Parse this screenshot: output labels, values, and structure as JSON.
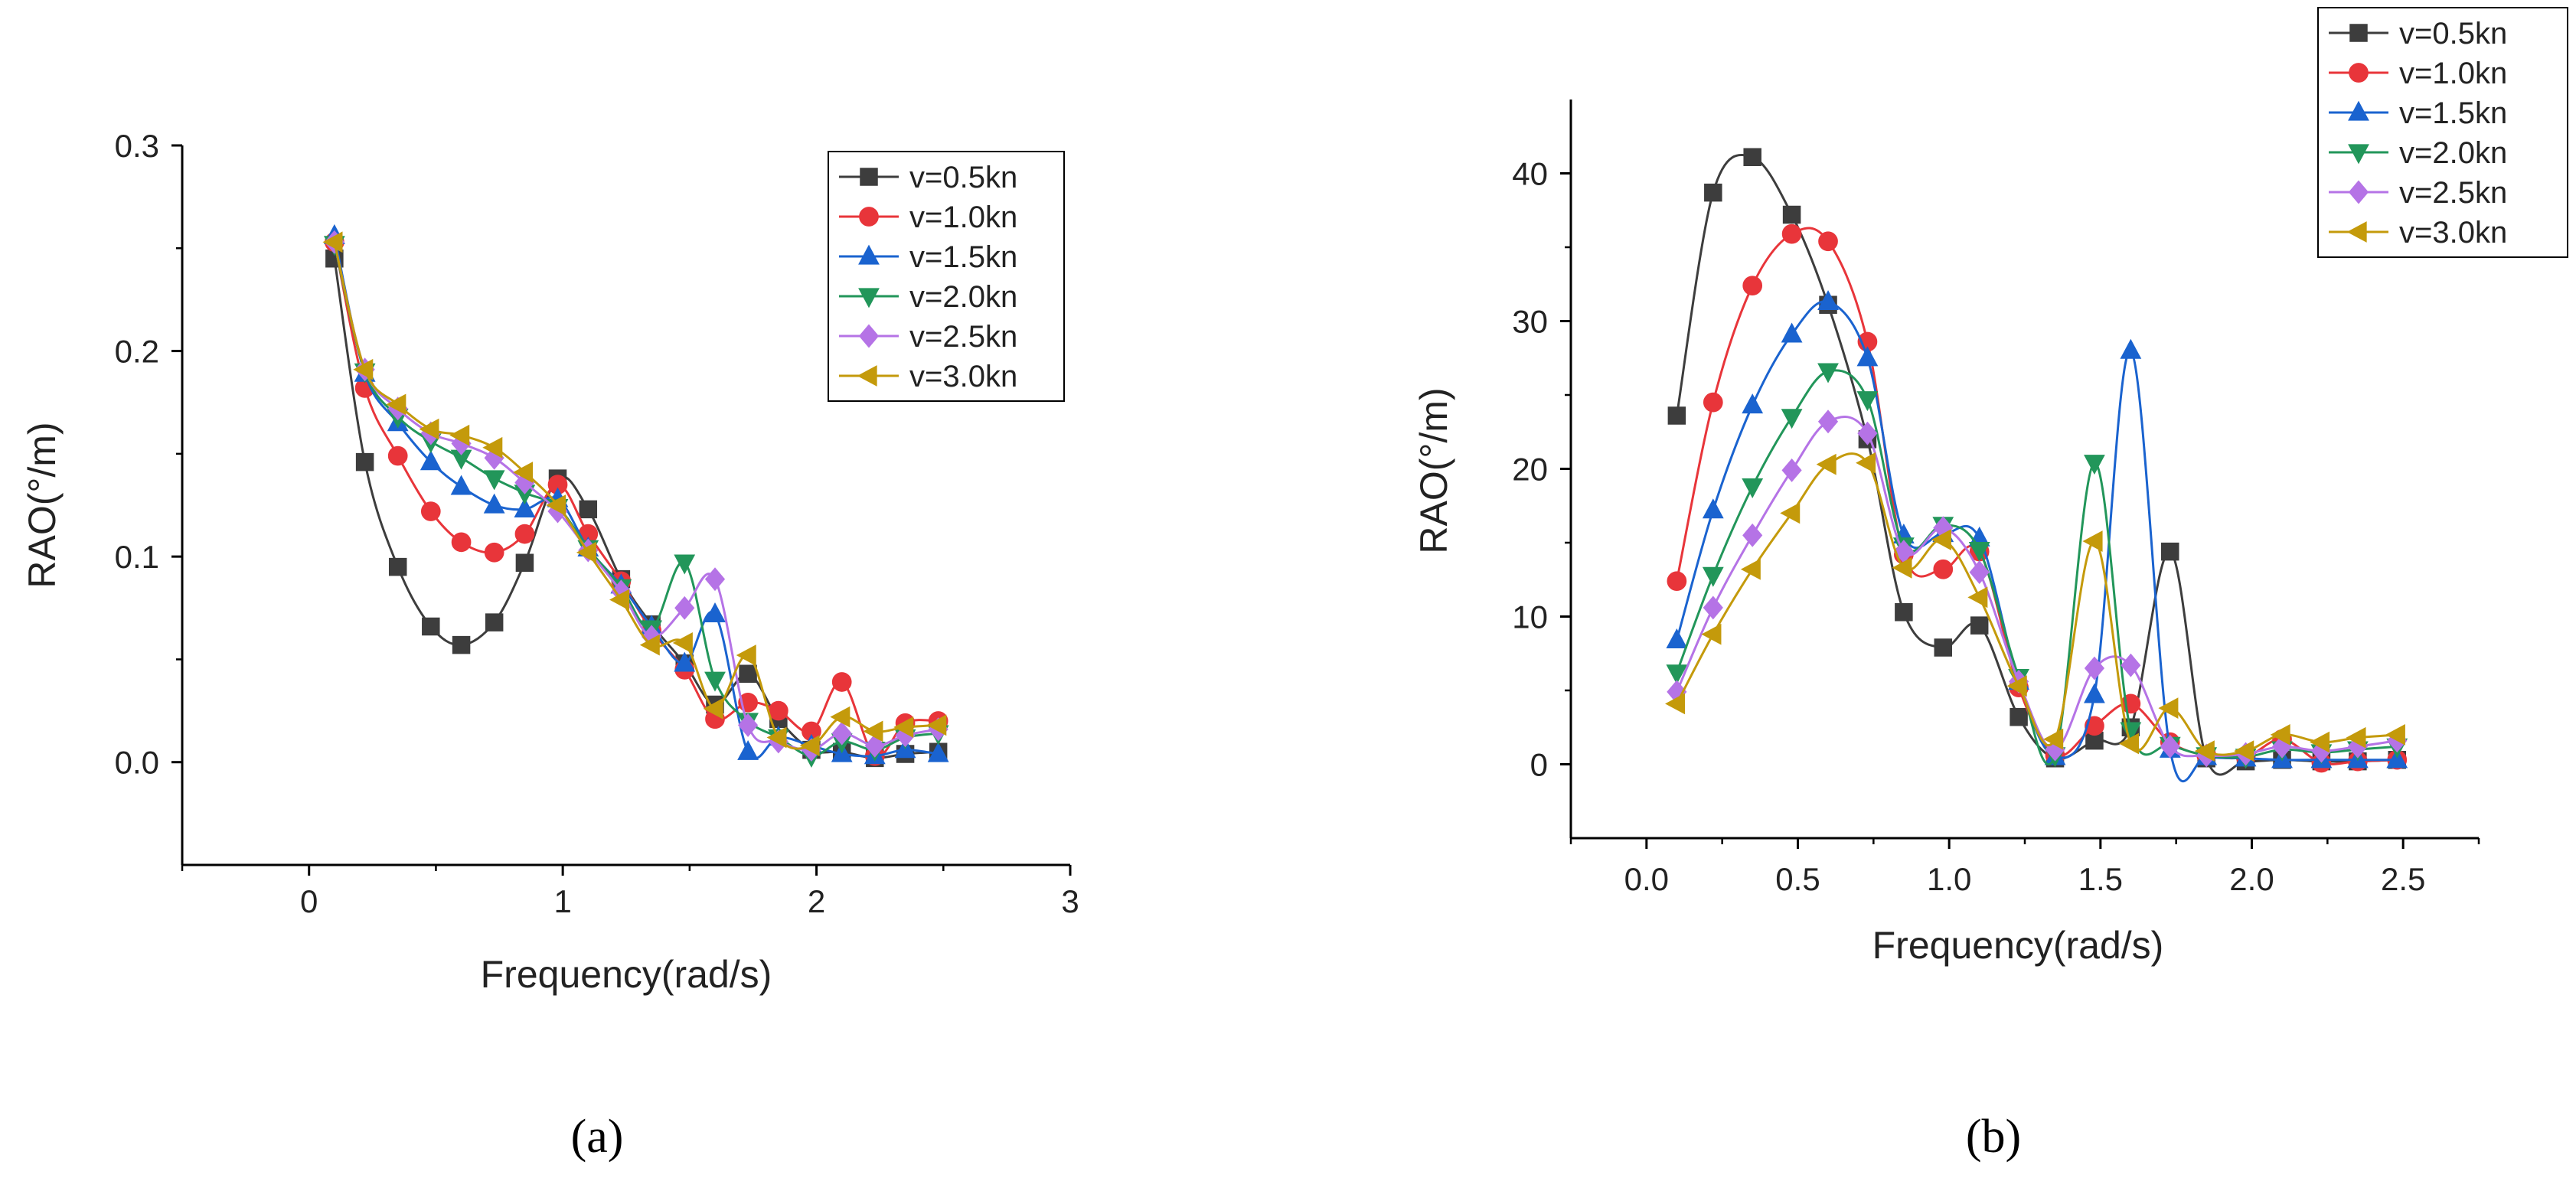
{
  "chart_data": [
    {
      "panel": "a",
      "caption": "(a)",
      "type": "line",
      "xlabel": "Frequency(rad/s)",
      "ylabel": "RAO(°/m)",
      "xlim": [
        -0.5,
        3
      ],
      "ylim": [
        -0.05,
        0.3
      ],
      "xticks": [
        0,
        1,
        2,
        3
      ],
      "xtick_labels": [
        "0",
        "1",
        "2",
        "3"
      ],
      "yticks": [
        0.0,
        0.1,
        0.2,
        0.3
      ],
      "ytick_labels": [
        "0.0",
        "0.1",
        "0.2",
        "0.3"
      ],
      "legend_position": "top-right",
      "x": [
        0.1,
        0.22,
        0.35,
        0.48,
        0.6,
        0.73,
        0.85,
        0.98,
        1.1,
        1.23,
        1.35,
        1.48,
        1.6,
        1.73,
        1.85,
        1.98,
        2.1,
        2.23,
        2.35,
        2.48
      ],
      "series": [
        {
          "name": "v=0.5kn",
          "color": "#3d3d3d",
          "marker": "square",
          "values": [
            0.245,
            0.146,
            0.095,
            0.066,
            0.057,
            0.068,
            0.097,
            0.138,
            0.123,
            0.089,
            0.067,
            0.048,
            0.028,
            0.043,
            0.021,
            0.006,
            0.005,
            0.002,
            0.004,
            0.005
          ]
        },
        {
          "name": "v=1.0kn",
          "color": "#e8353a",
          "marker": "circle",
          "values": [
            0.253,
            0.182,
            0.149,
            0.122,
            0.107,
            0.102,
            0.111,
            0.135,
            0.111,
            0.088,
            0.064,
            0.045,
            0.021,
            0.029,
            0.025,
            0.015,
            0.039,
            0.003,
            0.019,
            0.02
          ]
        },
        {
          "name": "v=1.5kn",
          "color": "#1a63cf",
          "marker": "triangle-up",
          "values": [
            0.256,
            0.189,
            0.165,
            0.146,
            0.134,
            0.125,
            0.123,
            0.128,
            0.104,
            0.086,
            0.066,
            0.048,
            0.072,
            0.005,
            0.012,
            0.008,
            0.004,
            0.003,
            0.006,
            0.004
          ]
        },
        {
          "name": "v=2.0kn",
          "color": "#22965a",
          "marker": "triangle-down",
          "values": [
            0.252,
            0.19,
            0.168,
            0.156,
            0.148,
            0.138,
            0.131,
            0.124,
            0.104,
            0.085,
            0.065,
            0.097,
            0.04,
            0.02,
            0.012,
            0.003,
            0.01,
            0.006,
            0.012,
            0.014
          ]
        },
        {
          "name": "v=2.5kn",
          "color": "#b573e6",
          "marker": "diamond",
          "values": [
            0.253,
            0.191,
            0.172,
            0.16,
            0.155,
            0.148,
            0.136,
            0.122,
            0.103,
            0.083,
            0.061,
            0.075,
            0.089,
            0.018,
            0.01,
            0.006,
            0.014,
            0.008,
            0.013,
            0.016
          ]
        },
        {
          "name": "v=3.0kn",
          "color": "#c49a0b",
          "marker": "triangle-left",
          "values": [
            0.253,
            0.191,
            0.174,
            0.162,
            0.159,
            0.153,
            0.141,
            0.125,
            0.102,
            0.079,
            0.057,
            0.058,
            0.026,
            0.052,
            0.012,
            0.008,
            0.022,
            0.015,
            0.017,
            0.018
          ]
        }
      ]
    },
    {
      "panel": "b",
      "caption": "(b)",
      "type": "line",
      "xlabel": "Frequency(rad/s)",
      "ylabel": "RAO(°/m)",
      "xlim": [
        -0.25,
        2.75
      ],
      "ylim": [
        -5,
        45
      ],
      "xticks": [
        0.0,
        0.5,
        1.0,
        1.5,
        2.0,
        2.5
      ],
      "xtick_labels": [
        "0.0",
        "0.5",
        "1.0",
        "1.5",
        "2.0",
        "2.5"
      ],
      "yticks": [
        0,
        10,
        20,
        30,
        40
      ],
      "ytick_labels": [
        "0",
        "10",
        "20",
        "30",
        "40"
      ],
      "legend_position": "top-right",
      "x": [
        0.1,
        0.22,
        0.35,
        0.48,
        0.6,
        0.73,
        0.85,
        0.98,
        1.1,
        1.23,
        1.35,
        1.48,
        1.6,
        1.73,
        1.85,
        1.98,
        2.1,
        2.23,
        2.35,
        2.48
      ],
      "series": [
        {
          "name": "v=0.5kn",
          "color": "#3d3d3d",
          "marker": "square",
          "values": [
            23.6,
            38.7,
            41.1,
            37.2,
            31.1,
            22.0,
            10.3,
            7.9,
            9.4,
            3.2,
            0.4,
            1.6,
            2.5,
            14.4,
            0.4,
            0.2,
            0.3,
            0.2,
            0.2,
            0.3
          ]
        },
        {
          "name": "v=1.0kn",
          "color": "#e8353a",
          "marker": "circle",
          "values": [
            12.4,
            24.5,
            32.4,
            35.9,
            35.4,
            28.6,
            14.2,
            13.2,
            14.4,
            5.2,
            0.6,
            2.6,
            4.1,
            1.5,
            0.6,
            0.5,
            1.7,
            0.1,
            0.2,
            0.3
          ]
        },
        {
          "name": "v=1.5kn",
          "color": "#1a63cf",
          "marker": "triangle-up",
          "values": [
            8.4,
            17.2,
            24.3,
            29.1,
            31.3,
            27.5,
            15.5,
            15.6,
            15.3,
            5.6,
            0.5,
            4.7,
            28.0,
            1.0,
            0.5,
            0.4,
            0.3,
            0.3,
            0.3,
            0.3
          ]
        },
        {
          "name": "v=2.0kn",
          "color": "#22965a",
          "marker": "triangle-down",
          "values": [
            6.2,
            12.8,
            18.8,
            23.5,
            26.6,
            24.7,
            14.8,
            16.2,
            14.5,
            5.9,
            0.6,
            20.4,
            2.3,
            1.3,
            0.6,
            0.5,
            1.0,
            0.8,
            1.0,
            1.2
          ]
        },
        {
          "name": "v=2.5kn",
          "color": "#b573e6",
          "marker": "diamond",
          "values": [
            4.9,
            10.6,
            15.5,
            19.9,
            23.2,
            22.4,
            14.4,
            16.0,
            13.0,
            5.6,
            1.0,
            6.5,
            6.7,
            1.2,
            0.6,
            0.7,
            1.2,
            0.9,
            1.2,
            1.6
          ]
        },
        {
          "name": "v=3.0kn",
          "color": "#c49a0b",
          "marker": "triangle-left",
          "values": [
            4.1,
            8.8,
            13.2,
            17.0,
            20.3,
            20.4,
            13.3,
            15.2,
            11.3,
            5.3,
            1.7,
            15.1,
            1.4,
            3.8,
            0.9,
            0.9,
            2.0,
            1.5,
            1.8,
            2.0
          ]
        }
      ]
    }
  ]
}
